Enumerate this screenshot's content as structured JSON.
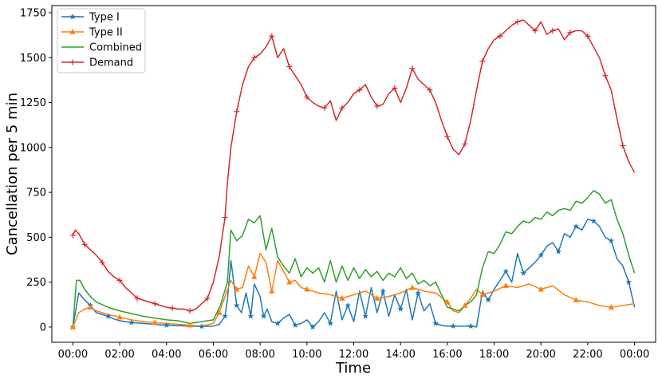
{
  "chart_data": {
    "type": "line",
    "xlabel": "Time",
    "ylabel": "Cancellation per 5 min",
    "x_ticks": [
      "00:00",
      "02:00",
      "04:00",
      "06:00",
      "08:00",
      "10:00",
      "12:00",
      "14:00",
      "16:00",
      "18:00",
      "20:00",
      "22:00",
      "00:00"
    ],
    "y_ticks": [
      0,
      250,
      500,
      750,
      1000,
      1250,
      1500,
      1750
    ],
    "xlim_hours": [
      -0.9,
      24.9
    ],
    "ylim": [
      -85,
      1790
    ],
    "grid": false,
    "legend_position": "top-left",
    "series": [
      {
        "name": "Type I",
        "color": "#1f77b4",
        "marker": "star",
        "x_hours": [
          0,
          0.25,
          0.5,
          0.75,
          1,
          1.25,
          1.5,
          1.75,
          2,
          2.5,
          3,
          3.5,
          4,
          4.5,
          5,
          5.5,
          6,
          6.25,
          6.5,
          6.6,
          6.75,
          7,
          7.2,
          7.4,
          7.6,
          7.75,
          8,
          8.15,
          8.3,
          8.5,
          8.75,
          9,
          9.25,
          9.5,
          9.75,
          10,
          10.25,
          10.5,
          10.75,
          11,
          11.25,
          11.5,
          11.75,
          12,
          12.25,
          12.5,
          12.75,
          13,
          13.25,
          13.5,
          13.75,
          14,
          14.25,
          14.5,
          14.75,
          15,
          15.25,
          15.5,
          15.75,
          16,
          16.25,
          16.5,
          16.75,
          17,
          17.25,
          17.5,
          17.75,
          18,
          18.25,
          18.5,
          18.75,
          19,
          19.25,
          19.5,
          19.75,
          20,
          20.25,
          20.5,
          20.75,
          21,
          21.25,
          21.5,
          21.75,
          22,
          22.25,
          22.5,
          22.75,
          23,
          23.25,
          23.5,
          23.75,
          24
        ],
        "values": [
          0,
          190,
          150,
          120,
          80,
          70,
          60,
          45,
          35,
          25,
          20,
          15,
          10,
          8,
          5,
          3,
          5,
          15,
          60,
          150,
          370,
          120,
          80,
          190,
          60,
          240,
          170,
          60,
          100,
          30,
          20,
          50,
          70,
          10,
          20,
          40,
          0,
          30,
          80,
          20,
          200,
          40,
          120,
          30,
          200,
          60,
          220,
          80,
          200,
          60,
          180,
          100,
          210,
          40,
          190,
          90,
          130,
          20,
          10,
          5,
          5,
          5,
          5,
          5,
          0,
          200,
          150,
          210,
          260,
          310,
          250,
          410,
          300,
          330,
          360,
          400,
          450,
          470,
          420,
          520,
          500,
          560,
          540,
          600,
          590,
          560,
          500,
          480,
          380,
          340,
          250,
          110
        ]
      },
      {
        "name": "Type II",
        "color": "#ff7f0e",
        "marker": "triangle",
        "x_hours": [
          0,
          0.25,
          0.5,
          0.75,
          1,
          1.5,
          2,
          2.5,
          3,
          3.5,
          4,
          4.5,
          5,
          5.5,
          6,
          6.25,
          6.5,
          6.75,
          7,
          7.25,
          7.5,
          7.75,
          8,
          8.25,
          8.5,
          8.75,
          9,
          9.25,
          9.5,
          9.75,
          10,
          10.5,
          11,
          11.5,
          12,
          12.5,
          13,
          13.5,
          14,
          14.5,
          15,
          15.5,
          16,
          16.25,
          16.5,
          16.75,
          17,
          17.25,
          17.5,
          17.75,
          18,
          18.5,
          19,
          19.5,
          20,
          20.5,
          21,
          21.5,
          22,
          22.5,
          23,
          23.5,
          24
        ],
        "values": [
          0,
          80,
          100,
          110,
          90,
          70,
          55,
          40,
          30,
          25,
          20,
          15,
          10,
          5,
          20,
          80,
          170,
          260,
          210,
          220,
          340,
          280,
          410,
          360,
          200,
          370,
          310,
          250,
          260,
          220,
          210,
          190,
          180,
          160,
          180,
          200,
          160,
          170,
          190,
          220,
          200,
          190,
          140,
          90,
          80,
          120,
          160,
          210,
          180,
          190,
          200,
          230,
          220,
          240,
          210,
          230,
          180,
          150,
          140,
          120,
          110,
          120,
          130
        ]
      },
      {
        "name": "Combined",
        "color": "#2ca02c",
        "marker": "none",
        "x_hours": [
          0,
          0.15,
          0.3,
          0.5,
          0.75,
          1,
          1.5,
          2,
          2.5,
          3,
          3.5,
          4,
          4.5,
          5,
          5.5,
          6,
          6.3,
          6.6,
          6.75,
          7,
          7.25,
          7.5,
          7.75,
          8,
          8.25,
          8.5,
          8.75,
          9,
          9.25,
          9.5,
          9.75,
          10,
          10.25,
          10.5,
          10.75,
          11,
          11.25,
          11.5,
          11.75,
          12,
          12.25,
          12.5,
          12.75,
          13,
          13.25,
          13.5,
          13.75,
          14,
          14.25,
          14.5,
          14.75,
          15,
          15.25,
          15.5,
          15.75,
          16,
          16.25,
          16.5,
          16.75,
          17,
          17.25,
          17.5,
          17.75,
          18,
          18.25,
          18.5,
          18.75,
          19,
          19.25,
          19.5,
          19.75,
          20,
          20.25,
          20.5,
          20.75,
          21,
          21.25,
          21.5,
          21.75,
          22,
          22.25,
          22.5,
          22.75,
          23,
          23.25,
          23.5,
          23.75,
          24
        ],
        "values": [
          0,
          260,
          260,
          210,
          170,
          140,
          110,
          90,
          75,
          60,
          50,
          40,
          35,
          20,
          30,
          40,
          120,
          250,
          540,
          480,
          510,
          600,
          580,
          620,
          430,
          550,
          390,
          340,
          300,
          380,
          280,
          330,
          300,
          330,
          250,
          370,
          250,
          340,
          260,
          330,
          270,
          320,
          280,
          310,
          260,
          300,
          280,
          330,
          270,
          300,
          240,
          260,
          230,
          250,
          180,
          110,
          100,
          90,
          120,
          140,
          180,
          330,
          420,
          410,
          460,
          530,
          520,
          560,
          590,
          580,
          610,
          600,
          640,
          620,
          650,
          660,
          650,
          700,
          690,
          720,
          760,
          740,
          690,
          710,
          600,
          520,
          400,
          300
        ]
      },
      {
        "name": "Demand",
        "color": "#d62728",
        "marker": "plus",
        "x_hours": [
          0,
          0.1,
          0.25,
          0.5,
          0.75,
          1,
          1.25,
          1.5,
          1.75,
          2,
          2.25,
          2.5,
          2.75,
          3,
          3.25,
          3.5,
          3.75,
          4,
          4.25,
          4.5,
          4.75,
          5,
          5.25,
          5.5,
          5.75,
          6,
          6.25,
          6.5,
          6.6,
          6.75,
          7,
          7.25,
          7.5,
          7.75,
          8,
          8.25,
          8.5,
          8.75,
          9,
          9.25,
          9.5,
          9.75,
          10,
          10.25,
          10.5,
          10.75,
          11,
          11.25,
          11.5,
          11.75,
          12,
          12.25,
          12.5,
          12.75,
          13,
          13.25,
          13.5,
          13.75,
          14,
          14.25,
          14.5,
          14.75,
          15,
          15.25,
          15.5,
          15.75,
          16,
          16.25,
          16.5,
          16.75,
          17,
          17.25,
          17.5,
          17.75,
          18,
          18.25,
          18.5,
          18.75,
          19,
          19.25,
          19.5,
          19.75,
          20,
          20.25,
          20.5,
          20.75,
          21,
          21.25,
          21.5,
          21.75,
          22,
          22.25,
          22.5,
          22.75,
          23,
          23.25,
          23.5,
          23.75,
          24
        ],
        "values": [
          510,
          540,
          520,
          460,
          430,
          400,
          360,
          310,
          280,
          260,
          220,
          190,
          160,
          150,
          140,
          130,
          120,
          110,
          105,
          100,
          100,
          90,
          100,
          130,
          160,
          250,
          390,
          610,
          800,
          1000,
          1200,
          1350,
          1450,
          1500,
          1520,
          1560,
          1620,
          1500,
          1550,
          1450,
          1400,
          1350,
          1280,
          1250,
          1230,
          1220,
          1260,
          1150,
          1220,
          1250,
          1300,
          1320,
          1350,
          1280,
          1230,
          1240,
          1300,
          1330,
          1250,
          1330,
          1440,
          1380,
          1350,
          1320,
          1250,
          1150,
          1060,
          990,
          960,
          1020,
          1150,
          1320,
          1480,
          1550,
          1600,
          1620,
          1650,
          1680,
          1700,
          1710,
          1680,
          1650,
          1700,
          1630,
          1650,
          1660,
          1600,
          1640,
          1650,
          1650,
          1620,
          1560,
          1500,
          1400,
          1320,
          1160,
          1010,
          920,
          860
        ]
      }
    ]
  }
}
